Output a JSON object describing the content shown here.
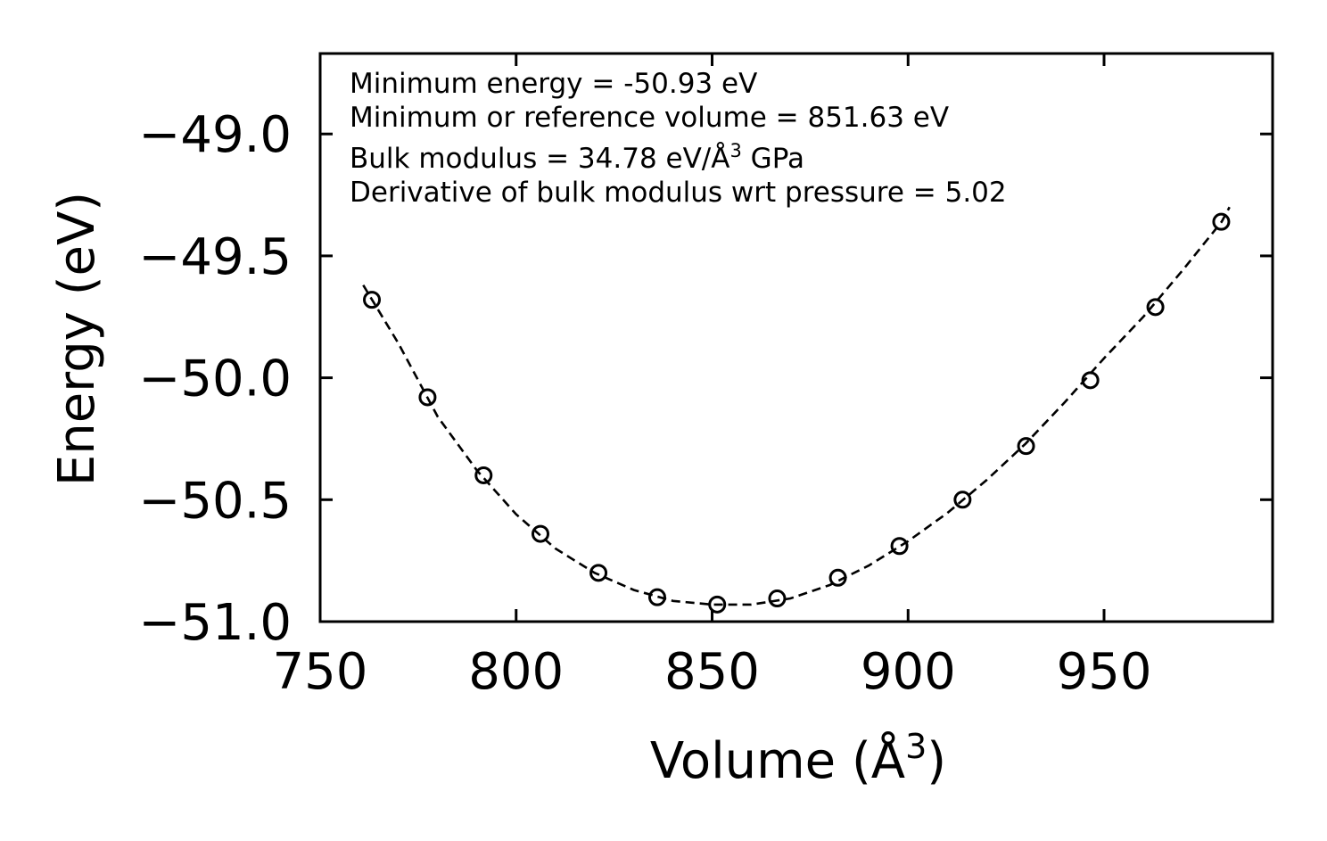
{
  "chart_data": {
    "type": "scatter",
    "xlabel": "Volume (Å",
    "xlabel_sup": "3",
    "xlabel_end": ")",
    "ylabel": "Energy (eV)",
    "xlim": [
      750,
      993
    ],
    "ylim": [
      -51.0,
      -48.67
    ],
    "xticks": [
      750,
      800,
      850,
      900,
      950
    ],
    "xtick_labels": [
      "750",
      "800",
      "850",
      "900",
      "950"
    ],
    "yticks": [
      -49.0,
      -49.5,
      -50.0,
      -50.5,
      -51.0
    ],
    "ytick_labels": [
      "−49.0",
      "−49.5",
      "−50.0",
      "−50.5",
      "−51.0"
    ],
    "annotations": {
      "min_energy": "Minimum energy = -50.93 eV",
      "min_volume": "Minimum or reference volume = 851.63 eV",
      "bulk_modulus_pre": "Bulk modulus = 34.78 eV/Å",
      "bulk_modulus_sup": "3",
      "bulk_modulus_post": " GPa",
      "derivative": "Derivative of bulk modulus wrt pressure = 5.02"
    },
    "series": [
      {
        "name": "data points",
        "style": "open-circle",
        "x": [
          763.2,
          777.4,
          791.7,
          806.2,
          821.0,
          836.0,
          851.3,
          866.6,
          882.1,
          897.8,
          913.9,
          930.1,
          946.5,
          963.1,
          979.9
        ],
        "y": [
          -49.68,
          -50.08,
          -50.4,
          -50.64,
          -50.8,
          -50.9,
          -50.93,
          -50.905,
          -50.82,
          -50.69,
          -50.5,
          -50.28,
          -50.01,
          -49.71,
          -49.36
        ]
      },
      {
        "name": "fit",
        "style": "dashed-line",
        "x": [
          761,
          770,
          780,
          790,
          800,
          810,
          820,
          830,
          840,
          850,
          860,
          870,
          880,
          890,
          900,
          910,
          920,
          930,
          940,
          950,
          960,
          970,
          980,
          982
        ],
        "y": [
          -49.62,
          -49.86,
          -50.16,
          -50.38,
          -50.56,
          -50.7,
          -50.8,
          -50.87,
          -50.915,
          -50.93,
          -50.93,
          -50.905,
          -50.85,
          -50.77,
          -50.67,
          -50.555,
          -50.42,
          -50.27,
          -50.1,
          -49.92,
          -49.75,
          -49.56,
          -49.36,
          -49.3
        ]
      }
    ]
  }
}
